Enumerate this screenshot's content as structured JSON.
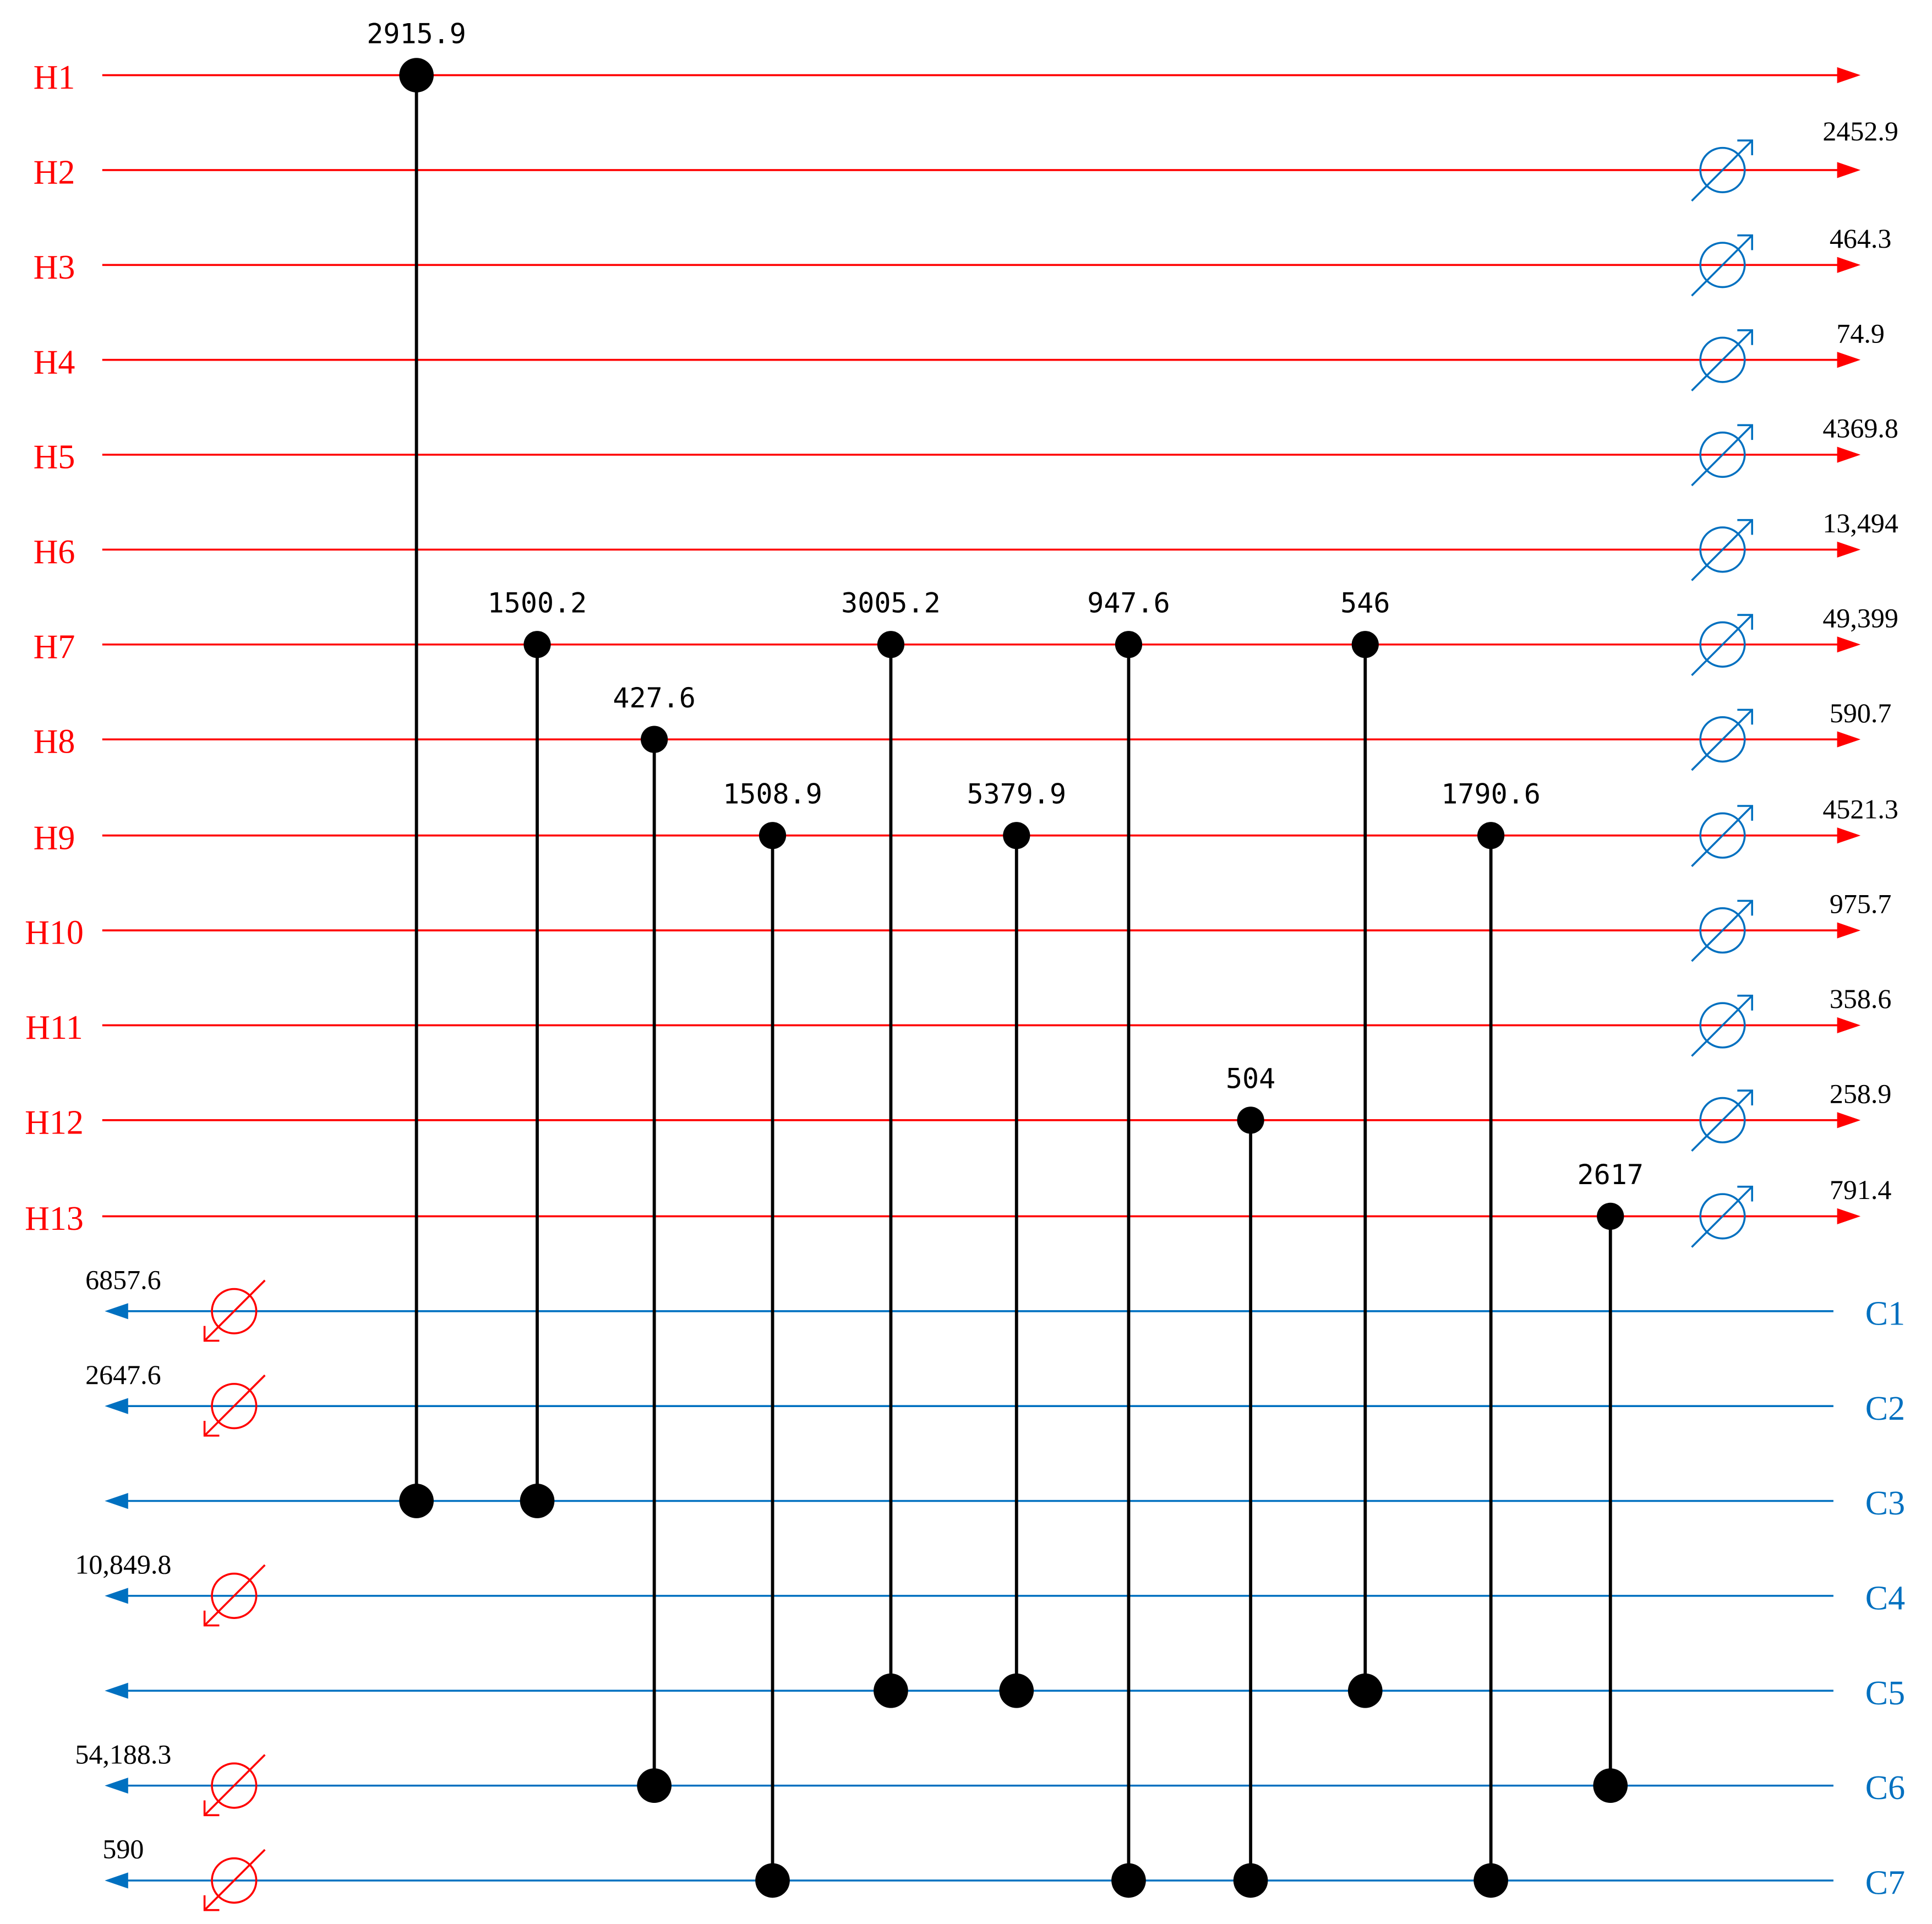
{
  "colors": {
    "hot": "#ff0000",
    "cold": "#0070c0",
    "match": "#000000"
  },
  "hot_streams": [
    {
      "name": "H1",
      "heater_icon": false,
      "utility": ""
    },
    {
      "name": "H2",
      "heater_icon": true,
      "utility": "2452.9"
    },
    {
      "name": "H3",
      "heater_icon": true,
      "utility": "464.3"
    },
    {
      "name": "H4",
      "heater_icon": true,
      "utility": "74.9"
    },
    {
      "name": "H5",
      "heater_icon": true,
      "utility": "4369.8"
    },
    {
      "name": "H6",
      "heater_icon": true,
      "utility": "13,494"
    },
    {
      "name": "H7",
      "heater_icon": true,
      "utility": "49,399"
    },
    {
      "name": "H8",
      "heater_icon": true,
      "utility": "590.7"
    },
    {
      "name": "H9",
      "heater_icon": true,
      "utility": "4521.3"
    },
    {
      "name": "H10",
      "heater_icon": true,
      "utility": "975.7"
    },
    {
      "name": "H11",
      "heater_icon": true,
      "utility": "358.6"
    },
    {
      "name": "H12",
      "heater_icon": true,
      "utility": "258.9"
    },
    {
      "name": "H13",
      "heater_icon": true,
      "utility": "791.4"
    }
  ],
  "cold_streams": [
    {
      "name": "C1",
      "heater_icon": true,
      "utility": "6857.6"
    },
    {
      "name": "C2",
      "heater_icon": true,
      "utility": "2647.6"
    },
    {
      "name": "C3",
      "heater_icon": false,
      "utility": ""
    },
    {
      "name": "C4",
      "heater_icon": true,
      "utility": "10,849.8"
    },
    {
      "name": "C5",
      "heater_icon": false,
      "utility": ""
    },
    {
      "name": "C6",
      "heater_icon": true,
      "utility": "54,188.3"
    },
    {
      "name": "C7",
      "heater_icon": true,
      "utility": "590"
    }
  ],
  "matches": [
    {
      "label": "2915.9",
      "hot": "H1",
      "cold": "C3"
    },
    {
      "label": "1500.2",
      "hot": "H7",
      "cold": "C3"
    },
    {
      "label": "427.6",
      "hot": "H8",
      "cold": "C6"
    },
    {
      "label": "1508.9",
      "hot": "H9",
      "cold": "C7"
    },
    {
      "label": "3005.2",
      "hot": "H7",
      "cold": "C5"
    },
    {
      "label": "5379.9",
      "hot": "H9",
      "cold": "C5"
    },
    {
      "label": "947.6",
      "hot": "H7",
      "cold": "C7"
    },
    {
      "label": "504",
      "hot": "H12",
      "cold": "C7"
    },
    {
      "label": "546",
      "hot": "H7",
      "cold": "C5"
    },
    {
      "label": "1790.6",
      "hot": "H9",
      "cold": "C7"
    },
    {
      "label": "2617",
      "hot": "H13",
      "cold": "C6"
    }
  ]
}
